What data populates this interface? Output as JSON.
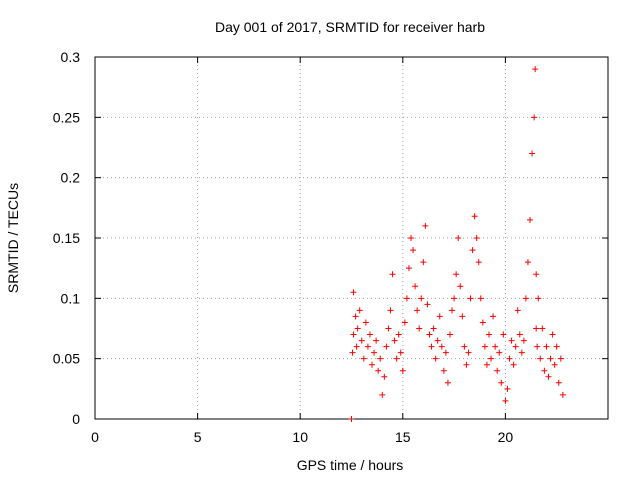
{
  "chart_data": {
    "type": "scatter",
    "title": "Day 001 of 2017, SRMTID for receiver harb",
    "xlabel": "GPS time / hours",
    "ylabel": "SRMTID / TECUs",
    "xlim": [
      0,
      25
    ],
    "ylim": [
      0,
      0.3
    ],
    "grid": true,
    "marker": "+",
    "color": "#ff0000",
    "xticks": [
      0,
      5,
      10,
      15,
      20
    ],
    "xtick_labels": [
      "0",
      "5",
      "10",
      "15",
      "20"
    ],
    "yticks": [
      0,
      0.05,
      0.1,
      0.15,
      0.2,
      0.25,
      0.3
    ],
    "ytick_labels": [
      "0",
      "0.05",
      "0.1",
      "0.15",
      "0.2",
      "0.25",
      "0.3"
    ],
    "series": [
      {
        "name": "SRMTID",
        "x": [
          12.5,
          12.55,
          12.6,
          12.6,
          12.7,
          12.75,
          12.8,
          12.9,
          13.0,
          13.1,
          13.2,
          13.3,
          13.4,
          13.5,
          13.6,
          13.7,
          13.8,
          13.9,
          14.0,
          14.1,
          14.2,
          14.3,
          14.4,
          14.5,
          14.6,
          14.7,
          14.8,
          14.9,
          15.0,
          15.1,
          15.2,
          15.3,
          15.4,
          15.5,
          15.6,
          15.7,
          15.8,
          15.9,
          16.0,
          16.1,
          16.2,
          16.3,
          16.4,
          16.5,
          16.6,
          16.7,
          16.8,
          16.9,
          17.0,
          17.1,
          17.2,
          17.3,
          17.4,
          17.5,
          17.6,
          17.7,
          17.8,
          17.9,
          18.0,
          18.1,
          18.2,
          18.3,
          18.4,
          18.5,
          18.6,
          18.7,
          18.8,
          18.9,
          19.0,
          19.1,
          19.2,
          19.3,
          19.4,
          19.5,
          19.6,
          19.7,
          19.8,
          19.9,
          20.0,
          20.1,
          20.2,
          20.3,
          20.4,
          20.5,
          20.6,
          20.7,
          20.8,
          20.9,
          21.0,
          21.1,
          21.2,
          21.3,
          21.4,
          21.45,
          21.5,
          21.5,
          21.55,
          21.6,
          21.7,
          21.8,
          21.9,
          22.0,
          22.1,
          22.2,
          22.3,
          22.4,
          22.5,
          22.6,
          22.7,
          22.8
        ],
        "y": [
          0.0,
          0.055,
          0.105,
          0.07,
          0.085,
          0.06,
          0.075,
          0.09,
          0.065,
          0.05,
          0.08,
          0.06,
          0.07,
          0.045,
          0.055,
          0.065,
          0.04,
          0.05,
          0.02,
          0.035,
          0.06,
          0.075,
          0.09,
          0.12,
          0.065,
          0.05,
          0.07,
          0.055,
          0.04,
          0.08,
          0.1,
          0.125,
          0.15,
          0.14,
          0.11,
          0.09,
          0.075,
          0.1,
          0.13,
          0.16,
          0.095,
          0.07,
          0.06,
          0.075,
          0.05,
          0.065,
          0.085,
          0.06,
          0.04,
          0.055,
          0.03,
          0.07,
          0.09,
          0.1,
          0.12,
          0.15,
          0.11,
          0.085,
          0.06,
          0.045,
          0.055,
          0.1,
          0.14,
          0.168,
          0.15,
          0.13,
          0.1,
          0.08,
          0.06,
          0.045,
          0.07,
          0.05,
          0.085,
          0.06,
          0.04,
          0.055,
          0.03,
          0.07,
          0.015,
          0.025,
          0.05,
          0.065,
          0.045,
          0.06,
          0.09,
          0.07,
          0.055,
          0.065,
          0.1,
          0.13,
          0.165,
          0.22,
          0.25,
          0.29,
          0.12,
          0.075,
          0.06,
          0.1,
          0.05,
          0.075,
          0.04,
          0.06,
          0.035,
          0.05,
          0.07,
          0.045,
          0.06,
          0.03,
          0.05,
          0.02
        ]
      }
    ]
  }
}
